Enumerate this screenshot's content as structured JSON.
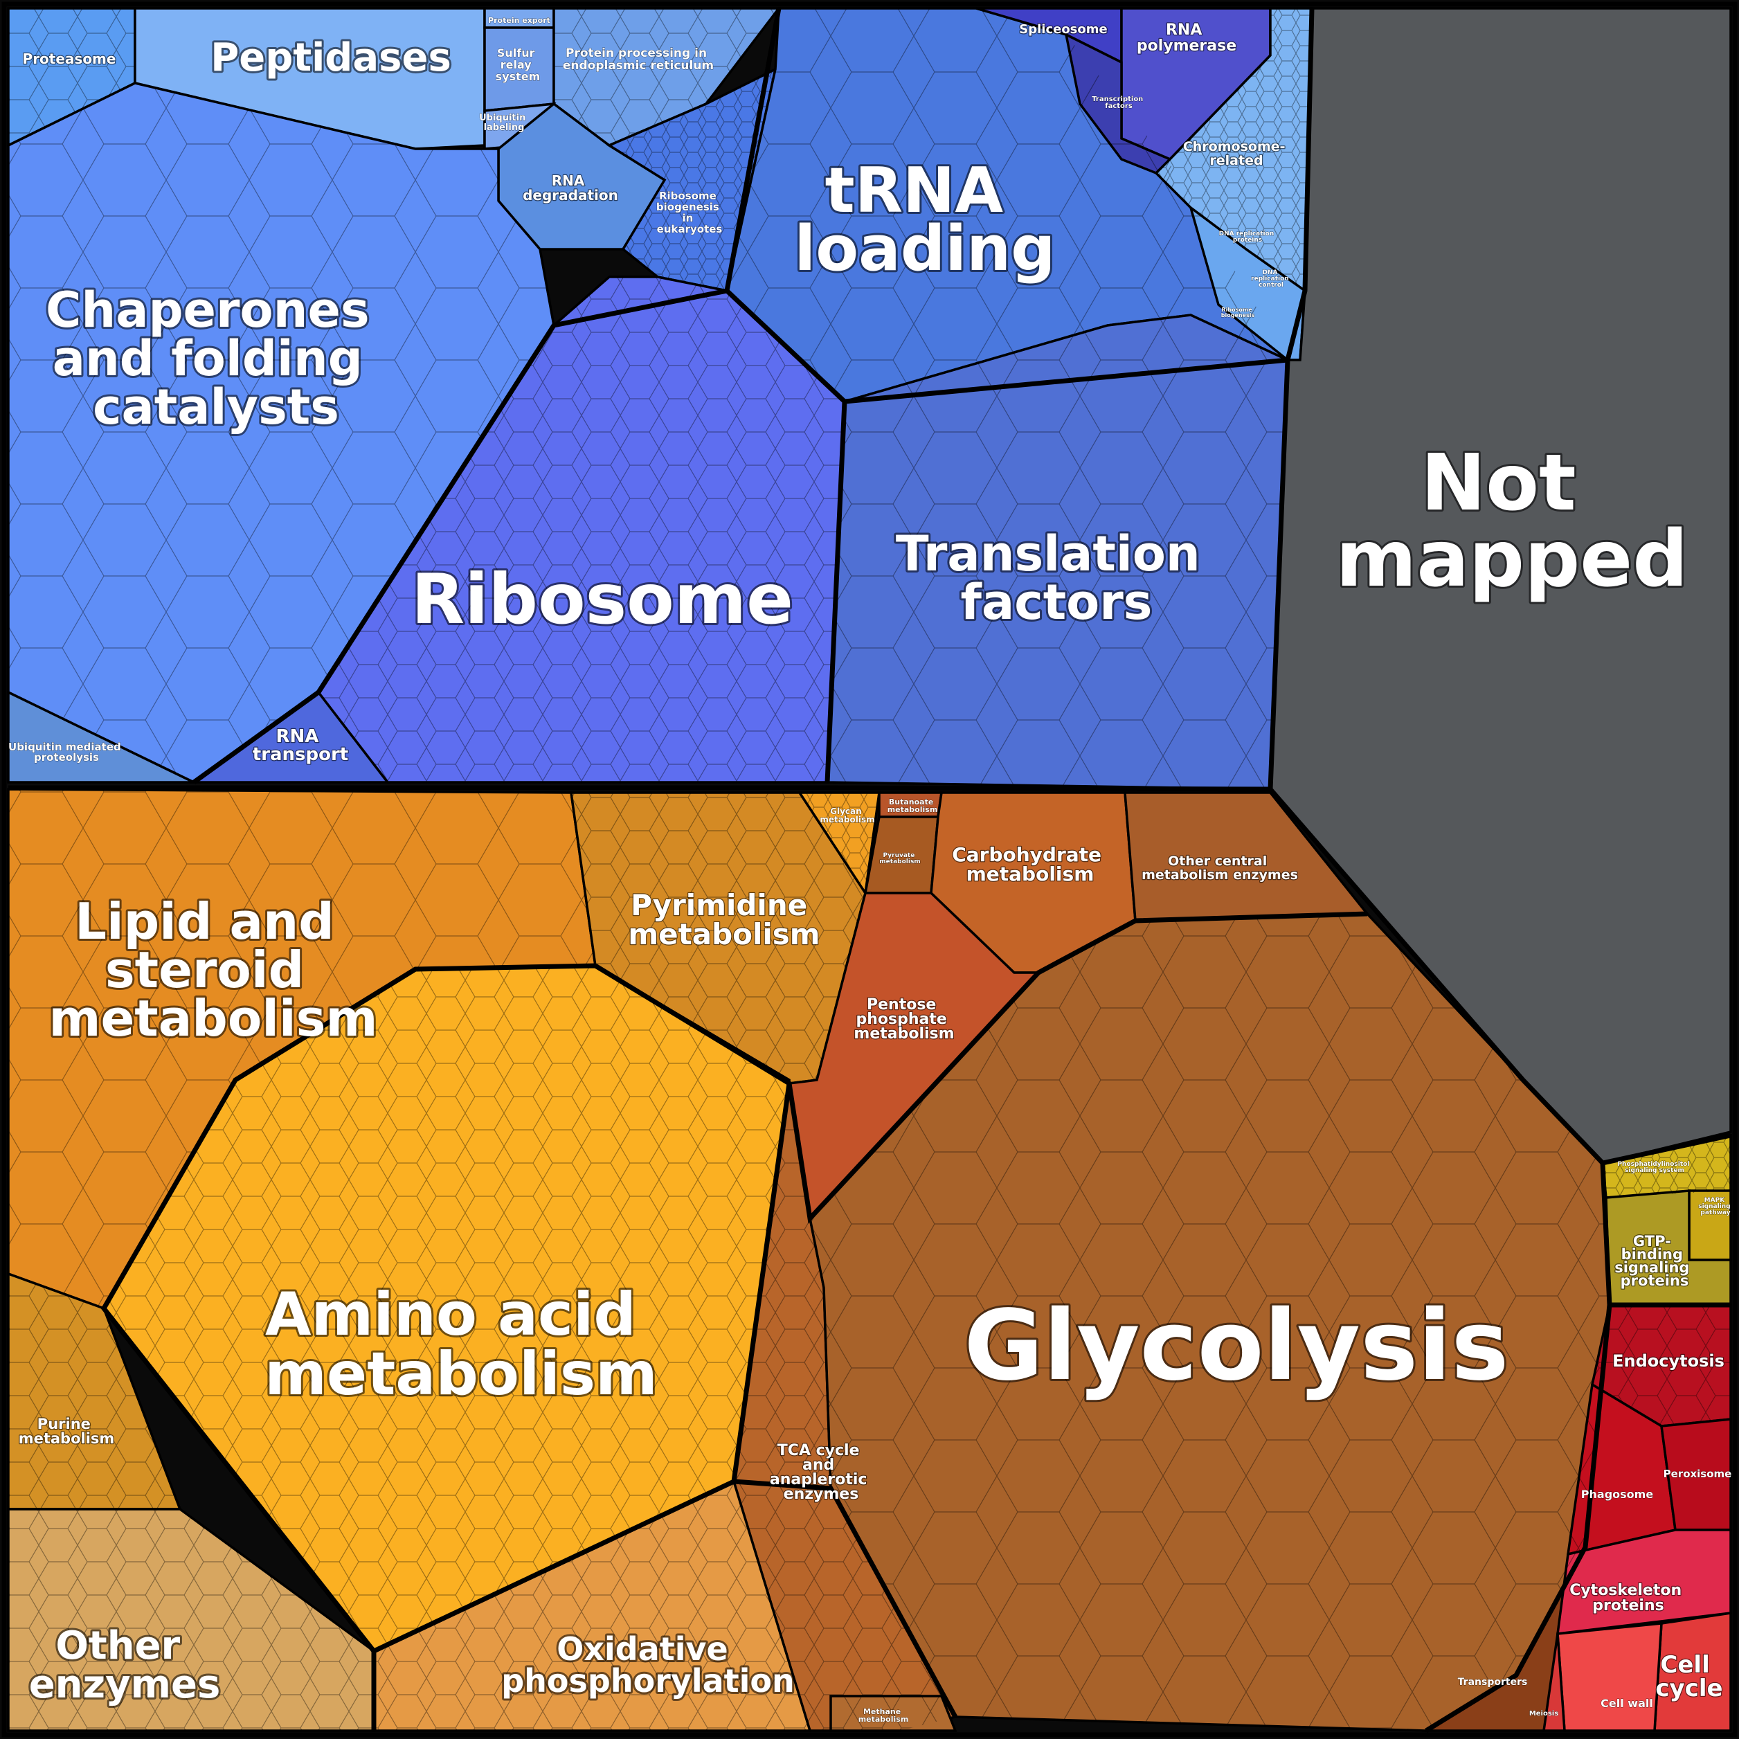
{
  "title": "",
  "colors": {
    "background": "#0a0a0a",
    "protein_group": "#5a7de0",
    "metabolism_group": "#d98a28",
    "signaling_group": "#bba51e",
    "cellular_group": "#c8102e",
    "not_mapped": "#55585b"
  },
  "labels": {
    "proteasome": "Proteasome",
    "peptidases": "Peptidases",
    "protein_export": "Protein export",
    "sulfur_relay": [
      "Sulfur",
      "relay",
      "system"
    ],
    "protein_processing": [
      "Protein processing in",
      "endoplasmic reticulum"
    ],
    "ubiquitin_labeling": [
      "Ubiquitin",
      "labeling"
    ],
    "rna_degradation": [
      "RNA",
      "degradation"
    ],
    "ribosome_biogenesis": [
      "Ribosome",
      "biogenesis",
      "in",
      "eukaryotes"
    ],
    "chaperones": [
      "Chaperones",
      "and folding",
      "catalysts"
    ],
    "ubiquitin_mediated": [
      "Ubiquitin mediated",
      "proteolysis"
    ],
    "rna_transport": [
      "RNA",
      "transport"
    ],
    "ribosome": "Ribosome",
    "trna_loading": [
      "tRNA",
      "loading"
    ],
    "translation_factors": [
      "Translation",
      "factors"
    ],
    "spliceosome": "Spliceosome",
    "rna_polymerase": [
      "RNA",
      "polymerase"
    ],
    "transcription_factors": [
      "Transcription",
      "factors"
    ],
    "chromosome_related": [
      "Chromosome-",
      "related"
    ],
    "dna_replication_proteins": [
      "DNA replication",
      "proteins"
    ],
    "dna_replication_control": [
      "DNA",
      "replication",
      "control"
    ],
    "ribosome_biogenesis_2": [
      "Ribosome",
      "biogenesis"
    ],
    "not_mapped": [
      "Not",
      "mapped"
    ],
    "lipid_steroid": [
      "Lipid and",
      "steroid",
      "metabolism"
    ],
    "pyrimidine": [
      "Pyrimidine",
      "metabolism"
    ],
    "glycan": [
      "Glycan",
      "metabolism"
    ],
    "butanoate": [
      "Butanoate",
      "metabolism"
    ],
    "pyruvate": [
      "Pyruvate",
      "metabolism"
    ],
    "carbohydrate": [
      "Carbohydrate",
      "metabolism"
    ],
    "other_central": [
      "Other central",
      "metabolism enzymes"
    ],
    "pentose_phosphate": [
      "Pentose",
      "phosphate",
      "metabolism"
    ],
    "amino_acid": [
      "Amino acid",
      "metabolism"
    ],
    "purine": [
      "Purine",
      "metabolism"
    ],
    "tca_cycle": [
      "TCA cycle",
      "and",
      "anaplerotic",
      "enzymes"
    ],
    "glycolysis": "Glycolysis",
    "oxidative_phosphorylation": [
      "Oxidative",
      "phosphorylation"
    ],
    "other_enzymes": [
      "Other",
      "enzymes"
    ],
    "methane": [
      "Methane",
      "metabolism"
    ],
    "transporters": "Transporters",
    "phosphatidylinositol": [
      "Phosphatidylinositol",
      "signaling system"
    ],
    "mapk": [
      "MAPK",
      "signaling",
      "pathway"
    ],
    "gtp_binding": [
      "GTP-",
      "binding",
      "signaling",
      "proteins"
    ],
    "endocytosis": "Endocytosis",
    "phagosome": "Phagosome",
    "peroxisome": "Peroxisome",
    "cytoskeleton": [
      "Cytoskeleton",
      "proteins"
    ],
    "cell_cycle": [
      "Cell",
      "cycle"
    ],
    "cell_wall": "Cell wall",
    "meiosis": "Meiosis"
  }
}
